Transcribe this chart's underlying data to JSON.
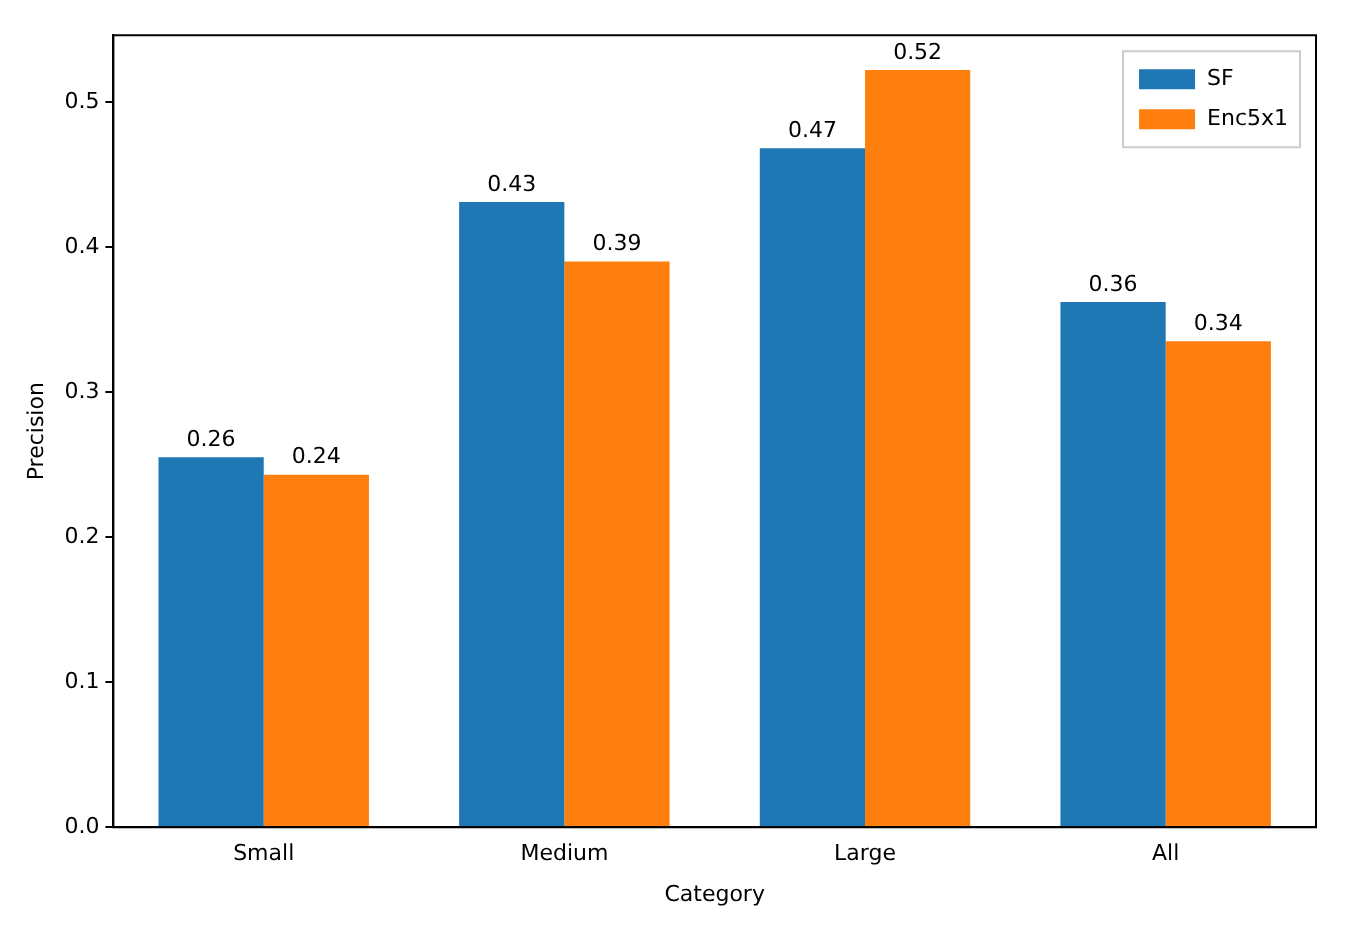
{
  "chart_data": {
    "type": "bar",
    "xlabel": "Category",
    "ylabel": "Precision",
    "categories": [
      "Small",
      "Medium",
      "Large",
      "All"
    ],
    "series": [
      {
        "name": "SF",
        "color": "#1f77b4",
        "values": [
          0.255,
          0.431,
          0.468,
          0.362
        ],
        "value_labels": [
          "0.26",
          "0.43",
          "0.47",
          "0.36"
        ]
      },
      {
        "name": "Enc5x1",
        "color": "#ff7f0e",
        "values": [
          0.243,
          0.39,
          0.522,
          0.335
        ],
        "value_labels": [
          "0.24",
          "0.39",
          "0.52",
          "0.34"
        ]
      }
    ],
    "ylim": [
      0,
      0.546
    ],
    "yticks": [
      {
        "value": 0,
        "label": "0.0"
      },
      0.1,
      0.2,
      0.3,
      0.4,
      0.5
    ],
    "grid": false,
    "legend": "top right"
  }
}
